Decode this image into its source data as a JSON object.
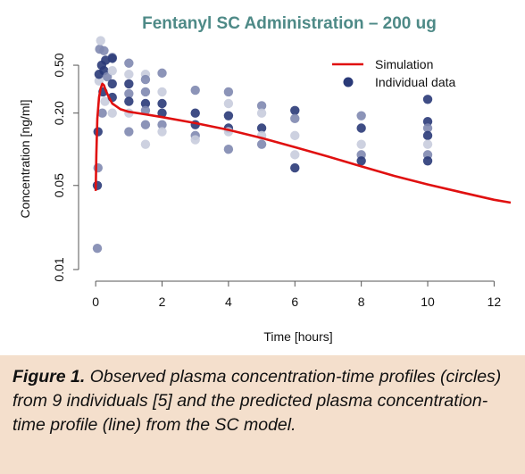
{
  "colors": {
    "title": "#4e8a87",
    "caption_background": "#f4dfcc",
    "simulation": "#e01010",
    "data_dark": "#2a3a78",
    "data_mid": "#8088b0",
    "data_light": "#c8ccdd",
    "axis": "#555555"
  },
  "caption": {
    "label": "Figure 1.",
    "text": "Observed plasma concentration-time profiles (circles) from 9 individuals [5] and the predicted plasma concentration-time profile (line) from the SC model."
  },
  "chart_data": {
    "type": "scatter",
    "title": "Fentanyl SC Administration – 200 ug",
    "xlabel": "Time [hours]",
    "ylabel": "Concentration [ng/ml]",
    "xlim": [
      -0.3,
      12.5
    ],
    "ylim": [
      0.008,
      0.85
    ],
    "y_scale": "log",
    "x_ticks": [
      0,
      2,
      4,
      6,
      8,
      10,
      12
    ],
    "x_tick_labels": [
      "0",
      "2",
      "4",
      "6",
      "8",
      "10",
      "12"
    ],
    "y_ticks": [
      0.01,
      0.05,
      0.2,
      0.5
    ],
    "y_tick_labels": [
      "0.01",
      "0.05",
      "0.20",
      "0.50"
    ],
    "grid": false,
    "legend": {
      "placement": "top-right",
      "entries": [
        {
          "label": "Simulation",
          "kind": "line",
          "color_key": "simulation"
        },
        {
          "label": "Individual data",
          "kind": "point",
          "color_key": "data_dark"
        }
      ]
    },
    "series": [
      {
        "name": "Simulation",
        "kind": "line",
        "x": [
          0.0,
          0.02,
          0.05,
          0.1,
          0.15,
          0.2,
          0.25,
          0.3,
          0.4,
          0.5,
          0.75,
          1.0,
          1.5,
          2.0,
          3.0,
          4.0,
          5.0,
          6.0,
          7.0,
          8.0,
          9.0,
          10.0,
          11.0,
          12.0,
          12.5
        ],
        "y": [
          0.045,
          0.09,
          0.18,
          0.27,
          0.32,
          0.35,
          0.34,
          0.31,
          0.27,
          0.24,
          0.215,
          0.205,
          0.195,
          0.185,
          0.165,
          0.145,
          0.124,
          0.104,
          0.087,
          0.072,
          0.06,
          0.051,
          0.044,
          0.038,
          0.036
        ]
      },
      {
        "name": "Individual data",
        "kind": "points",
        "points": [
          {
            "x": 0.05,
            "y": 0.05,
            "shade": "dark"
          },
          {
            "x": 0.07,
            "y": 0.07,
            "shade": "mid"
          },
          {
            "x": 0.05,
            "y": 0.015,
            "shade": "mid"
          },
          {
            "x": 0.07,
            "y": 0.14,
            "shade": "dark"
          },
          {
            "x": 0.1,
            "y": 0.37,
            "shade": "light"
          },
          {
            "x": 0.1,
            "y": 0.42,
            "shade": "dark"
          },
          {
            "x": 0.12,
            "y": 0.68,
            "shade": "mid"
          },
          {
            "x": 0.15,
            "y": 0.8,
            "shade": "light"
          },
          {
            "x": 0.18,
            "y": 0.5,
            "shade": "dark"
          },
          {
            "x": 0.2,
            "y": 0.2,
            "shade": "mid"
          },
          {
            "x": 0.22,
            "y": 0.3,
            "shade": "dark"
          },
          {
            "x": 0.25,
            "y": 0.66,
            "shade": "mid"
          },
          {
            "x": 0.25,
            "y": 0.45,
            "shade": "dark"
          },
          {
            "x": 0.28,
            "y": 0.25,
            "shade": "light"
          },
          {
            "x": 0.3,
            "y": 0.55,
            "shade": "dark"
          },
          {
            "x": 0.35,
            "y": 0.4,
            "shade": "mid"
          },
          {
            "x": 0.5,
            "y": 0.58,
            "shade": "mid"
          },
          {
            "x": 0.5,
            "y": 0.45,
            "shade": "light"
          },
          {
            "x": 0.5,
            "y": 0.35,
            "shade": "dark"
          },
          {
            "x": 0.5,
            "y": 0.27,
            "shade": "dark"
          },
          {
            "x": 0.5,
            "y": 0.2,
            "shade": "light"
          },
          {
            "x": 0.5,
            "y": 0.57,
            "shade": "dark"
          },
          {
            "x": 1.0,
            "y": 0.52,
            "shade": "mid"
          },
          {
            "x": 1.0,
            "y": 0.42,
            "shade": "light"
          },
          {
            "x": 1.0,
            "y": 0.35,
            "shade": "dark"
          },
          {
            "x": 1.0,
            "y": 0.29,
            "shade": "mid"
          },
          {
            "x": 1.0,
            "y": 0.25,
            "shade": "dark"
          },
          {
            "x": 1.0,
            "y": 0.2,
            "shade": "light"
          },
          {
            "x": 1.0,
            "y": 0.14,
            "shade": "mid"
          },
          {
            "x": 1.5,
            "y": 0.42,
            "shade": "light"
          },
          {
            "x": 1.5,
            "y": 0.38,
            "shade": "mid"
          },
          {
            "x": 1.5,
            "y": 0.3,
            "shade": "mid"
          },
          {
            "x": 1.5,
            "y": 0.24,
            "shade": "dark"
          },
          {
            "x": 1.5,
            "y": 0.21,
            "shade": "mid"
          },
          {
            "x": 1.5,
            "y": 0.16,
            "shade": "mid"
          },
          {
            "x": 1.5,
            "y": 0.11,
            "shade": "light"
          },
          {
            "x": 2.0,
            "y": 0.43,
            "shade": "mid"
          },
          {
            "x": 2.0,
            "y": 0.3,
            "shade": "light"
          },
          {
            "x": 2.0,
            "y": 0.24,
            "shade": "dark"
          },
          {
            "x": 2.0,
            "y": 0.2,
            "shade": "dark"
          },
          {
            "x": 2.0,
            "y": 0.16,
            "shade": "mid"
          },
          {
            "x": 2.0,
            "y": 0.14,
            "shade": "light"
          },
          {
            "x": 3.0,
            "y": 0.31,
            "shade": "mid"
          },
          {
            "x": 3.0,
            "y": 0.2,
            "shade": "dark"
          },
          {
            "x": 3.0,
            "y": 0.16,
            "shade": "dark"
          },
          {
            "x": 3.0,
            "y": 0.13,
            "shade": "mid"
          },
          {
            "x": 3.0,
            "y": 0.12,
            "shade": "light"
          },
          {
            "x": 4.0,
            "y": 0.3,
            "shade": "mid"
          },
          {
            "x": 4.0,
            "y": 0.24,
            "shade": "light"
          },
          {
            "x": 4.0,
            "y": 0.19,
            "shade": "dark"
          },
          {
            "x": 4.0,
            "y": 0.15,
            "shade": "dark"
          },
          {
            "x": 4.0,
            "y": 0.14,
            "shade": "light"
          },
          {
            "x": 4.0,
            "y": 0.1,
            "shade": "mid"
          },
          {
            "x": 5.0,
            "y": 0.23,
            "shade": "mid"
          },
          {
            "x": 5.0,
            "y": 0.2,
            "shade": "light"
          },
          {
            "x": 5.0,
            "y": 0.15,
            "shade": "dark"
          },
          {
            "x": 5.0,
            "y": 0.13,
            "shade": "light"
          },
          {
            "x": 5.0,
            "y": 0.11,
            "shade": "mid"
          },
          {
            "x": 6.0,
            "y": 0.21,
            "shade": "dark"
          },
          {
            "x": 6.0,
            "y": 0.18,
            "shade": "mid"
          },
          {
            "x": 6.0,
            "y": 0.13,
            "shade": "light"
          },
          {
            "x": 6.0,
            "y": 0.09,
            "shade": "light"
          },
          {
            "x": 6.0,
            "y": 0.07,
            "shade": "dark"
          },
          {
            "x": 8.0,
            "y": 0.19,
            "shade": "mid"
          },
          {
            "x": 8.0,
            "y": 0.15,
            "shade": "dark"
          },
          {
            "x": 8.0,
            "y": 0.11,
            "shade": "light"
          },
          {
            "x": 8.0,
            "y": 0.09,
            "shade": "mid"
          },
          {
            "x": 8.0,
            "y": 0.08,
            "shade": "dark"
          },
          {
            "x": 10.0,
            "y": 0.26,
            "shade": "dark"
          },
          {
            "x": 10.0,
            "y": 0.17,
            "shade": "dark"
          },
          {
            "x": 10.0,
            "y": 0.15,
            "shade": "mid"
          },
          {
            "x": 10.0,
            "y": 0.13,
            "shade": "dark"
          },
          {
            "x": 10.0,
            "y": 0.11,
            "shade": "light"
          },
          {
            "x": 10.0,
            "y": 0.09,
            "shade": "mid"
          },
          {
            "x": 10.0,
            "y": 0.08,
            "shade": "dark"
          }
        ]
      }
    ]
  }
}
